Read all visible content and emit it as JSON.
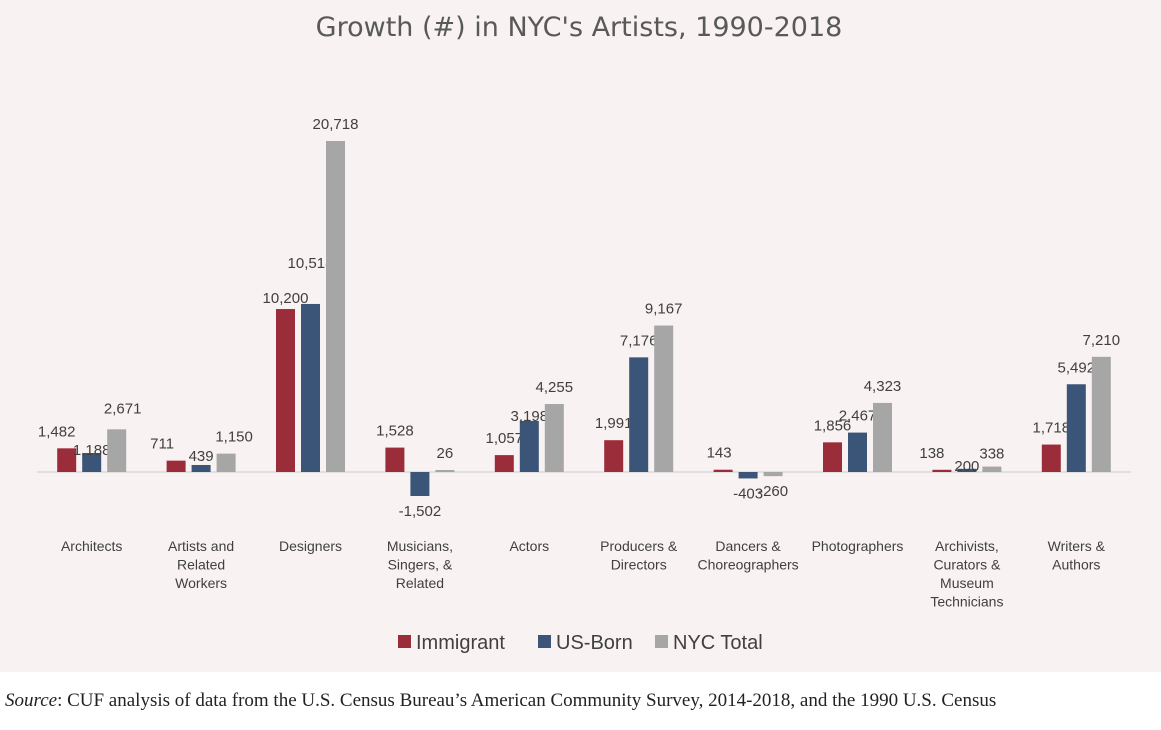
{
  "chart_data": {
    "type": "bar",
    "title": "Growth (#) in NYC's Artists, 1990-2018",
    "categories": [
      [
        "Architects"
      ],
      [
        "Artists and",
        "Related",
        "Workers"
      ],
      [
        "Designers"
      ],
      [
        "Musicians,",
        "Singers, &",
        "Related"
      ],
      [
        "Actors"
      ],
      [
        "Producers &",
        "Directors"
      ],
      [
        "Dancers &",
        "Choreographers"
      ],
      [
        "Photographers"
      ],
      [
        "Archivists,",
        "Curators &",
        "Museum",
        "Technicians"
      ],
      [
        "Writers &",
        "Authors"
      ]
    ],
    "series": [
      {
        "name": "Immigrant",
        "color": "#9b2d3b",
        "values": [
          1482,
          711,
          10200,
          1528,
          1057,
          1991,
          143,
          1856,
          138,
          1718
        ],
        "labels": [
          "1,482",
          "711",
          "10,200",
          "1,528",
          "1,057",
          "1,991",
          "143",
          "1,856",
          "138",
          "1,718"
        ]
      },
      {
        "name": "US-Born",
        "color": "#3a5577",
        "values": [
          1188,
          439,
          10518,
          -1502,
          3198,
          7176,
          -403,
          2467,
          200,
          5492
        ],
        "labels": [
          "1,188",
          "439",
          "10,518",
          "-1,502",
          "3,198",
          "7,176",
          "-403",
          "2,467",
          "200",
          "5,492"
        ]
      },
      {
        "name": "NYC Total",
        "color": "#a6a6a6",
        "values": [
          2671,
          1150,
          20718,
          26,
          4255,
          9167,
          -260,
          4323,
          338,
          7210
        ],
        "labels": [
          "2,671",
          "1,150",
          "20,718",
          "26",
          "4,255",
          "9,167",
          "-260",
          "4,323",
          "338",
          "7,210"
        ]
      }
    ],
    "legend_position": "bottom",
    "grid": false,
    "ylim": [
      -2000,
      22000
    ]
  },
  "source": {
    "label": "Source",
    "text": ": CUF analysis of data from the U.S. Census Bureau’s American Community Survey, 2014-2018, and the 1990 U.S. Census"
  }
}
